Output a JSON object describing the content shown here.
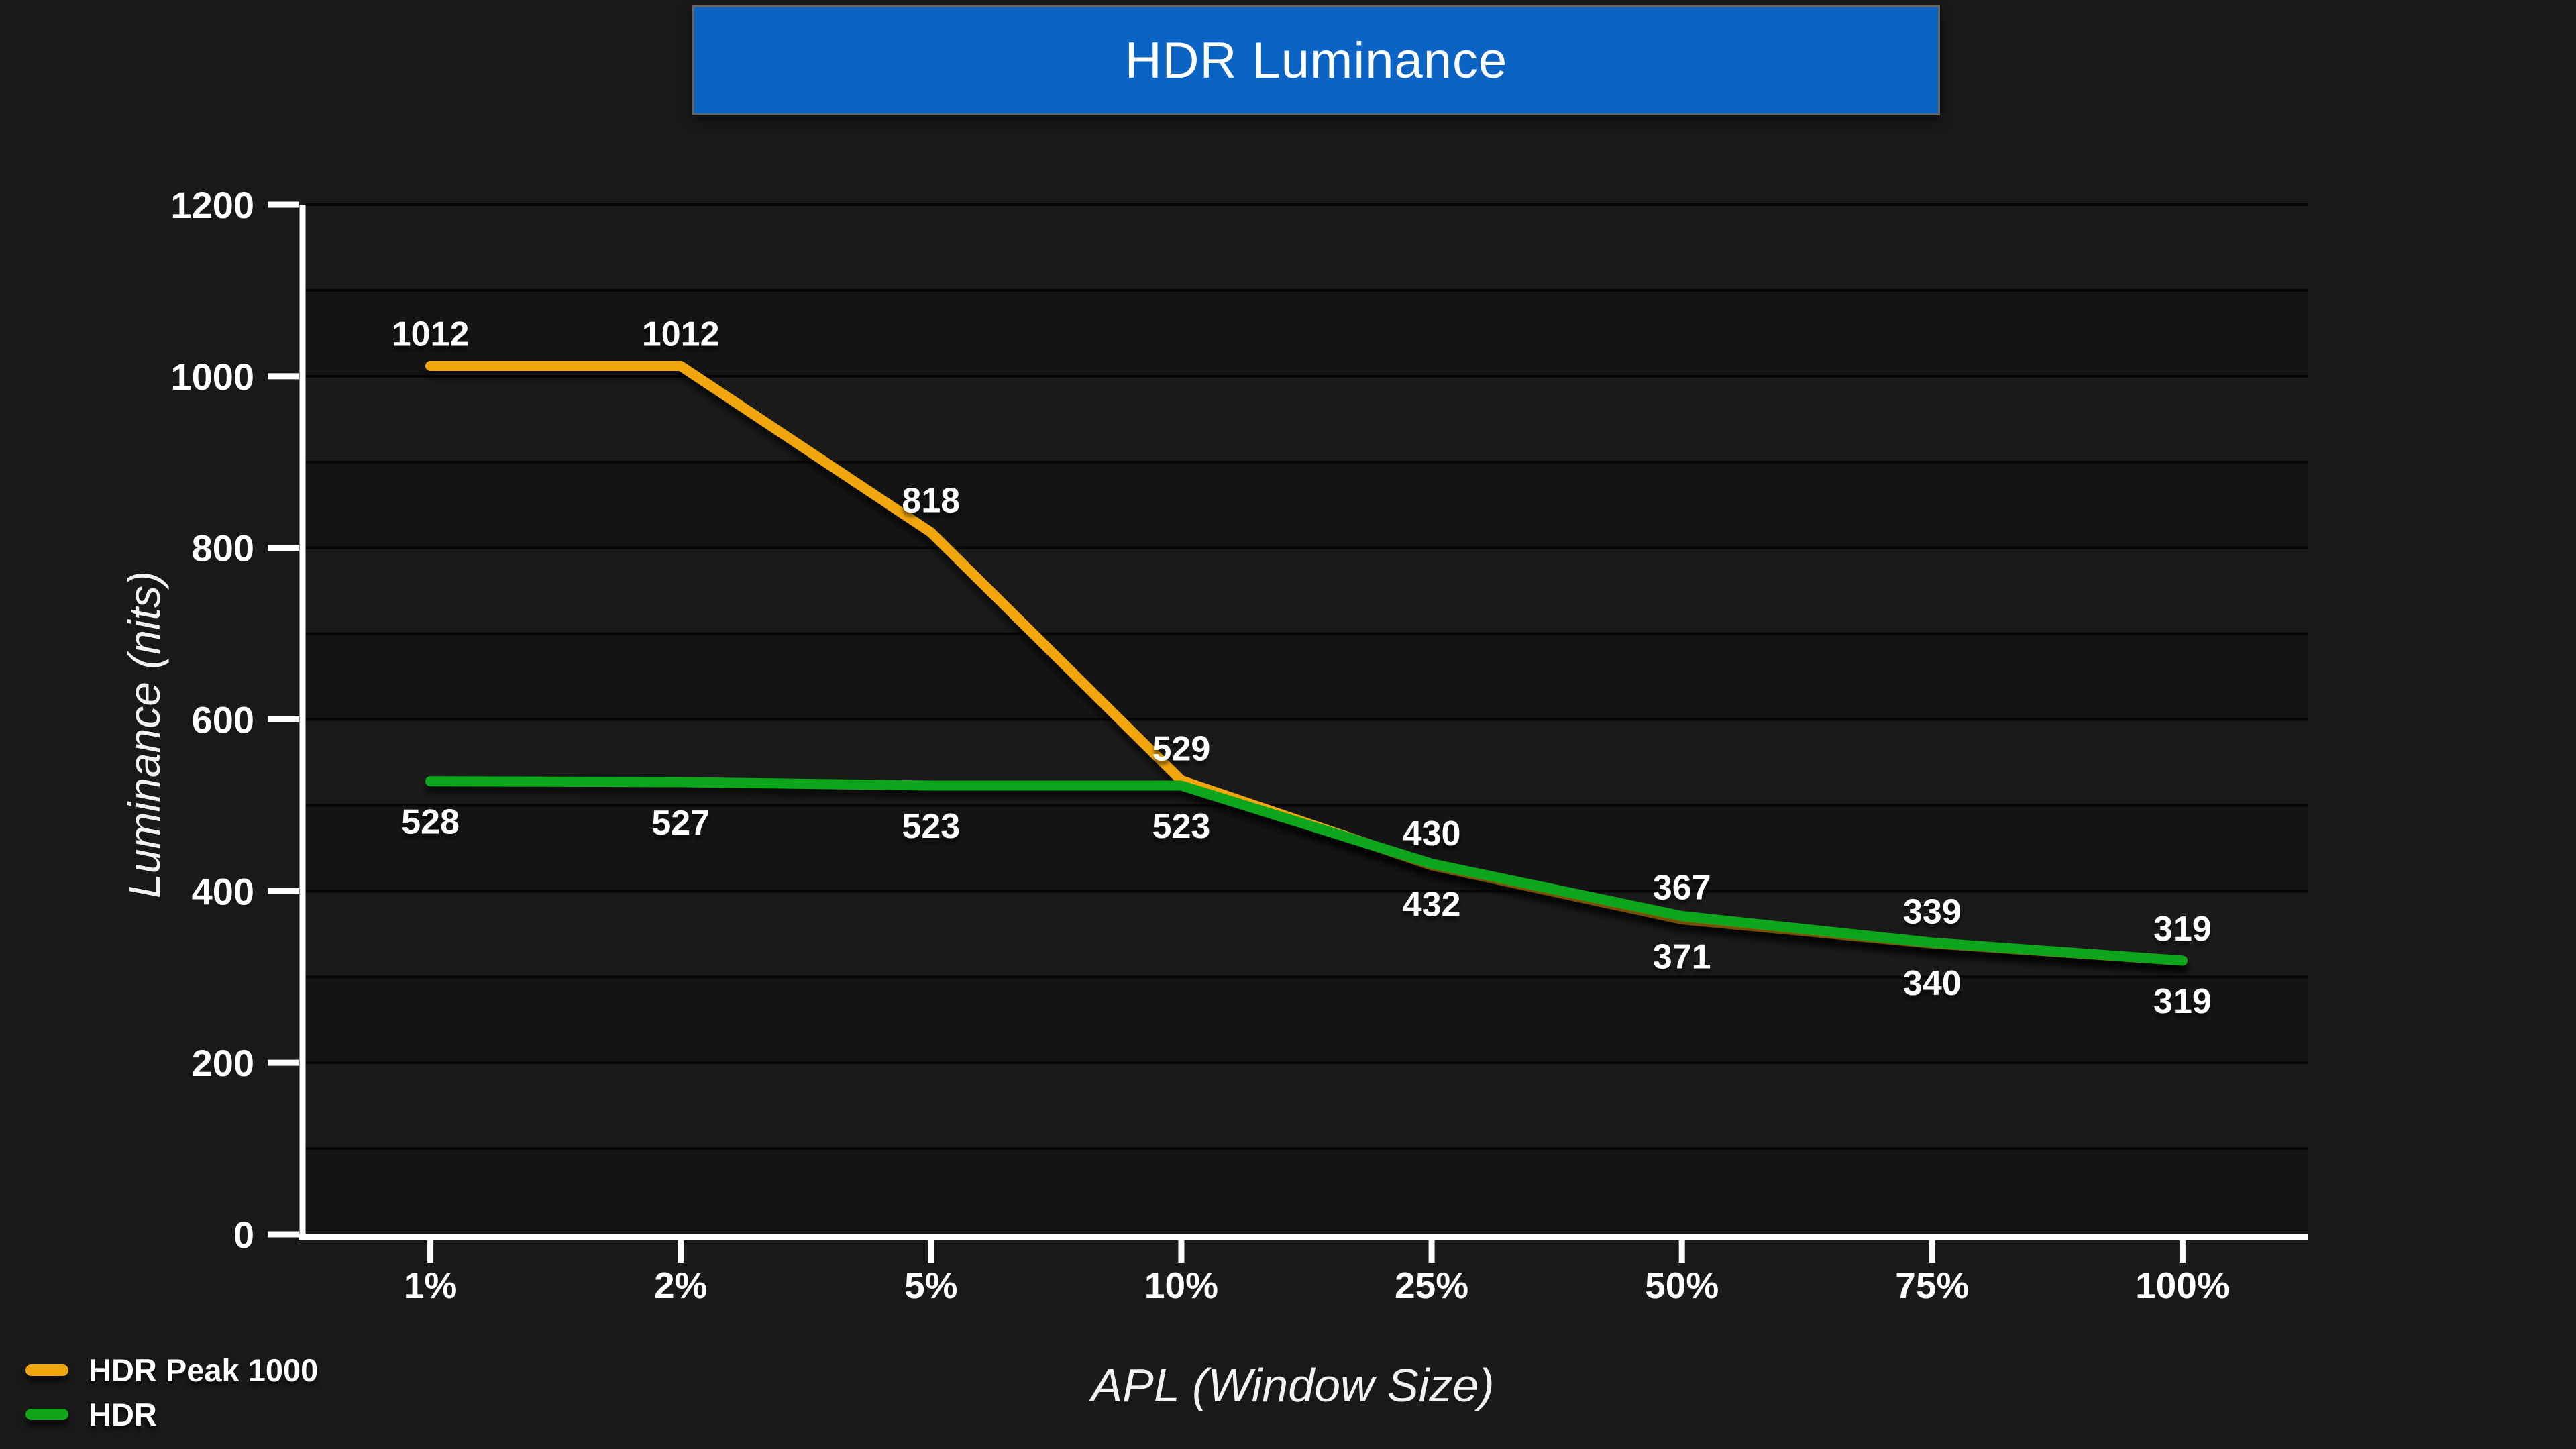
{
  "title": "HDR Luminance",
  "colors": {
    "title_bg": "#0b63c4",
    "title_border": "#646464",
    "page_bg": "#191919",
    "band_dark": "#141414",
    "band_light": "#1a1a1a",
    "gridline": "#060606",
    "axis": "#ffffff",
    "text": "#ffffff",
    "orange": "#f2a60e",
    "green": "#10a51b"
  },
  "chart_data": {
    "type": "line",
    "title": "HDR Luminance",
    "xlabel": "APL (Window Size)",
    "ylabel": "Luminance (nits)",
    "categories": [
      "1%",
      "2%",
      "5%",
      "10%",
      "25%",
      "50%",
      "75%",
      "100%"
    ],
    "series": [
      {
        "name": "HDR Peak 1000",
        "color_key": "orange",
        "label_position": "above",
        "values": [
          1012,
          1012,
          818,
          529,
          430,
          367,
          339,
          319
        ]
      },
      {
        "name": "HDR",
        "color_key": "green",
        "label_position": "below",
        "values": [
          528,
          527,
          523,
          523,
          432,
          371,
          340,
          319
        ]
      }
    ],
    "ylim": [
      0,
      1200
    ],
    "y_major_ticks": [
      0,
      200,
      400,
      600,
      800,
      1000,
      1200
    ],
    "y_minor_grid_step": 100,
    "grid": "horizontal-only",
    "legend_position": "bottom-left",
    "data_labels": "shown"
  },
  "legend": {
    "items": [
      {
        "label": "HDR Peak 1000",
        "color_key": "orange"
      },
      {
        "label": "HDR",
        "color_key": "green"
      }
    ]
  }
}
